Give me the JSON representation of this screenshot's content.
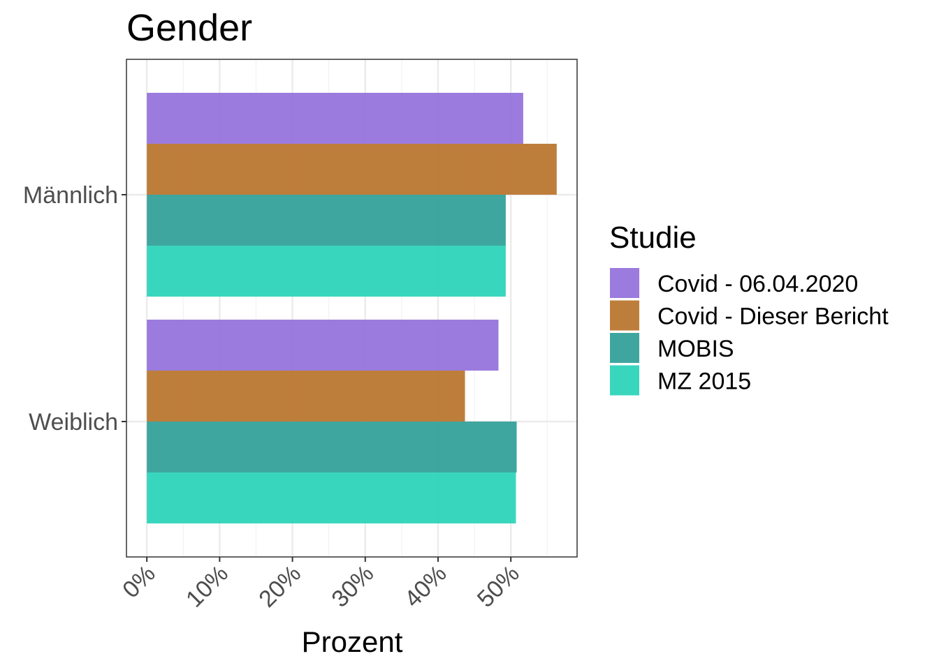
{
  "chart_data": {
    "type": "bar",
    "orientation": "horizontal",
    "title": "Gender",
    "xlabel": "Prozent",
    "ylabel": "",
    "categories": [
      "Männlich",
      "Weiblich"
    ],
    "series": [
      {
        "name": "Covid - 06.04.2020",
        "values": [
          51.7,
          48.3
        ],
        "color": "#9370DB"
      },
      {
        "name": "Covid - Dieser Bericht",
        "values": [
          56.3,
          43.7
        ],
        "color": "#B8732A"
      },
      {
        "name": "MOBIS",
        "values": [
          49.3,
          50.8
        ],
        "color": "#2E9E97"
      },
      {
        "name": "MZ 2015",
        "values": [
          49.3,
          50.7
        ],
        "color": "#28D3B8"
      }
    ],
    "xlim": [
      -2.8,
      59.1
    ],
    "xticks": [
      0,
      10,
      20,
      30,
      40,
      50
    ],
    "xtick_labels": [
      "0%",
      "10%",
      "20%",
      "30%",
      "40%",
      "50%"
    ],
    "grid": true,
    "legend": {
      "title": "Studie",
      "position": "right"
    }
  }
}
